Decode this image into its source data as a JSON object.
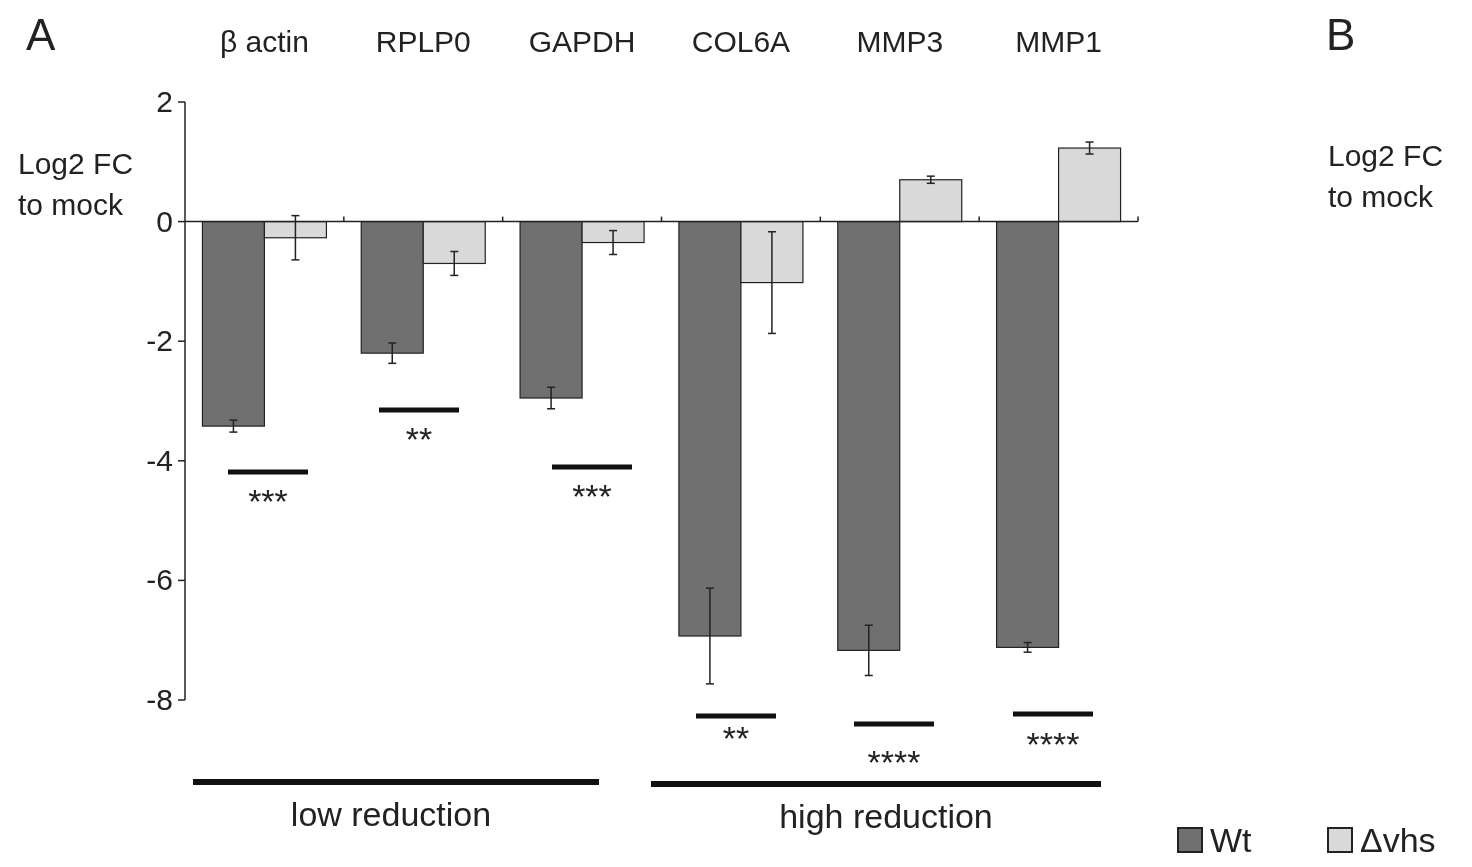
{
  "chart_data": {
    "type": "bar",
    "ylabel": "Log2 FC to mock",
    "categories": [
      "β actin",
      "RPLP0",
      "GAPDH",
      "COL6A",
      "MMP3",
      "MMP1"
    ],
    "series": [
      {
        "name": "Wt",
        "color": "#707070",
        "values": [
          -3.42,
          -2.2,
          -2.95,
          -6.93,
          -7.17,
          -7.12
        ],
        "errors": [
          0.1,
          0.17,
          0.18,
          0.8,
          0.42,
          0.08
        ]
      },
      {
        "name": "Δvhs",
        "color": "#d9d9d9",
        "values": [
          -0.27,
          -0.7,
          -0.35,
          -1.02,
          0.7,
          1.23
        ],
        "errors": [
          0.37,
          0.2,
          0.2,
          0.85,
          0.06,
          0.1
        ]
      }
    ],
    "ylim": [
      -8,
      2
    ],
    "yticks": [
      2,
      0,
      -2,
      -4,
      -6,
      -8
    ],
    "legend": "bottom right",
    "annotations": [
      "A",
      "B",
      "Log2 FC to mock",
      "low reduction",
      "high reduction",
      "***",
      "**",
      "***",
      "**",
      "****",
      "****"
    ]
  }
}
